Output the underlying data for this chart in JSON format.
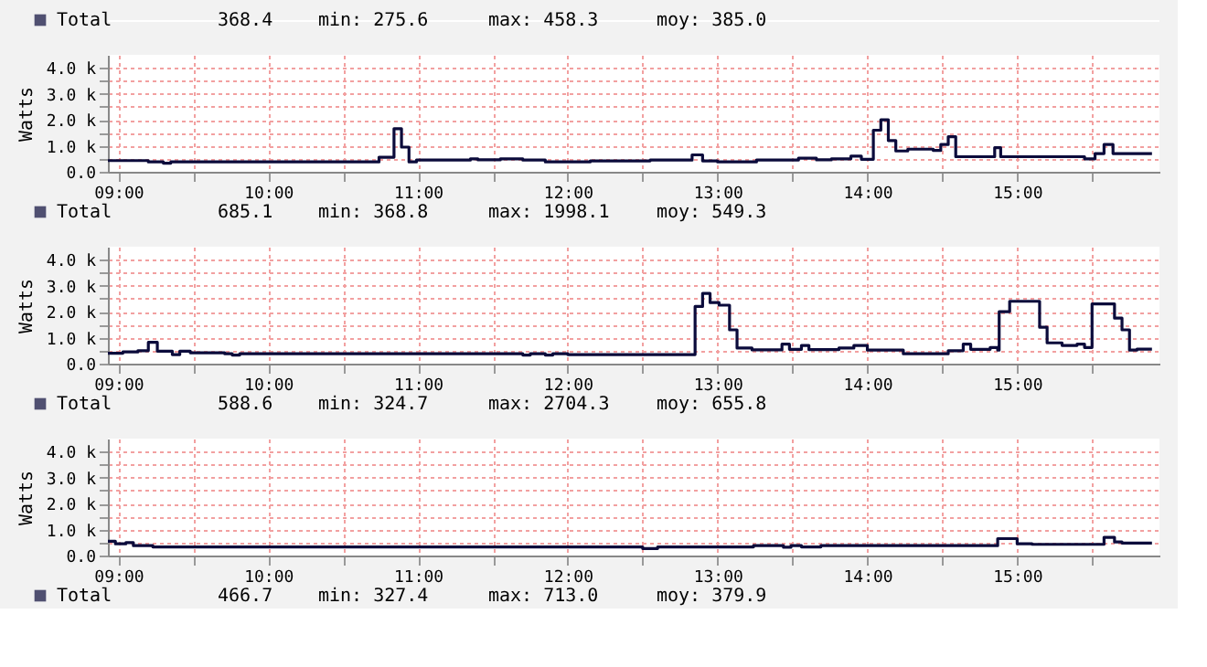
{
  "chart_data": [
    {
      "type": "other",
      "annotations": [
        "Total",
        "368.4",
        "min: 275.6",
        "max: 458.3",
        "moy: 385.0"
      ]
    },
    {
      "type": "step",
      "ylabel": "Watts",
      "legend": "bottom left",
      "grid": true,
      "xlim": [
        8.93,
        15.95
      ],
      "ylim": [
        0,
        4500
      ],
      "xticks": [
        {
          "value": 9,
          "label": "09:00"
        },
        {
          "value": 9.5,
          "label": null
        },
        {
          "value": 10,
          "label": "10:00"
        },
        {
          "value": 10.5,
          "label": null
        },
        {
          "value": 11,
          "label": "11:00"
        },
        {
          "value": 11.5,
          "label": null
        },
        {
          "value": 12,
          "label": "12:00"
        },
        {
          "value": 12.5,
          "label": null
        },
        {
          "value": 13,
          "label": "13:00"
        },
        {
          "value": 13.5,
          "label": null
        },
        {
          "value": 14,
          "label": "14:00"
        },
        {
          "value": 14.5,
          "label": null
        },
        {
          "value": 15,
          "label": "15:00"
        },
        {
          "value": 15.5,
          "label": null
        }
      ],
      "yticks": [
        {
          "value": 0,
          "label": "0.0"
        },
        {
          "value": 500,
          "label": null
        },
        {
          "value": 1000,
          "label": "1.0 k"
        },
        {
          "value": 1500,
          "label": null
        },
        {
          "value": 2000,
          "label": "2.0 k"
        },
        {
          "value": 2500,
          "label": null
        },
        {
          "value": 3000,
          "label": "3.0 k"
        },
        {
          "value": 3500,
          "label": null
        },
        {
          "value": 4000,
          "label": "4.0 k"
        }
      ],
      "annotations": [
        "685.1",
        "min: 368.8",
        "max: 1998.1",
        "moy: 549.3"
      ],
      "series": [
        {
          "name": "Total",
          "color": "#0b0b3b",
          "x": [
            8.93,
            9.2,
            9.3,
            9.35,
            10.74,
            10.84,
            10.89,
            10.94,
            10.99,
            11.35,
            11.4,
            11.55,
            11.7,
            11.85,
            12.15,
            12.55,
            12.83,
            12.9,
            13.0,
            13.26,
            13.54,
            13.66,
            13.76,
            13.89,
            13.96,
            14.04,
            14.09,
            14.14,
            14.19,
            14.27,
            14.39,
            14.44,
            14.49,
            14.54,
            14.59,
            14.85,
            14.89,
            15.45,
            15.52,
            15.58,
            15.64,
            15.9
          ],
          "values": [
            430,
            380,
            330,
            380,
            560,
            1660,
            950,
            380,
            450,
            500,
            460,
            500,
            450,
            380,
            420,
            450,
            650,
            420,
            380,
            450,
            520,
            460,
            500,
            600,
            480,
            1600,
            2000,
            1200,
            800,
            870,
            870,
            820,
            1050,
            1350,
            580,
            930,
            580,
            500,
            700,
            1050,
            700,
            700
          ]
        }
      ]
    },
    {
      "type": "step",
      "ylabel": "Watts",
      "legend": "bottom left",
      "grid": true,
      "xlim": [
        8.93,
        15.95
      ],
      "ylim": [
        0,
        4500
      ],
      "xticks": [
        {
          "value": 9,
          "label": "09:00"
        },
        {
          "value": 9.5,
          "label": null
        },
        {
          "value": 10,
          "label": "10:00"
        },
        {
          "value": 10.5,
          "label": null
        },
        {
          "value": 11,
          "label": "11:00"
        },
        {
          "value": 11.5,
          "label": null
        },
        {
          "value": 12,
          "label": "12:00"
        },
        {
          "value": 12.5,
          "label": null
        },
        {
          "value": 13,
          "label": "13:00"
        },
        {
          "value": 13.5,
          "label": null
        },
        {
          "value": 14,
          "label": "14:00"
        },
        {
          "value": 14.5,
          "label": null
        },
        {
          "value": 15,
          "label": "15:00"
        },
        {
          "value": 15.5,
          "label": null
        }
      ],
      "yticks": [
        {
          "value": 0,
          "label": "0.0"
        },
        {
          "value": 500,
          "label": null
        },
        {
          "value": 1000,
          "label": "1.0 k"
        },
        {
          "value": 1500,
          "label": null
        },
        {
          "value": 2000,
          "label": "2.0 k"
        },
        {
          "value": 2500,
          "label": null
        },
        {
          "value": 3000,
          "label": "3.0 k"
        },
        {
          "value": 3500,
          "label": null
        },
        {
          "value": 4000,
          "label": "4.0 k"
        }
      ],
      "annotations": [
        "588.6",
        "min: 324.7",
        "max: 2704.3",
        "moy: 655.8"
      ],
      "series": [
        {
          "name": "Total",
          "color": "#0b0b3b",
          "x": [
            8.93,
            9.03,
            9.13,
            9.2,
            9.26,
            9.36,
            9.41,
            9.48,
            9.71,
            9.76,
            9.81,
            11.7,
            11.75,
            11.85,
            11.9,
            12.0,
            12.85,
            12.9,
            12.95,
            13.01,
            13.08,
            13.13,
            13.23,
            13.43,
            13.48,
            13.56,
            13.61,
            13.81,
            13.91,
            14.0,
            14.24,
            14.54,
            14.64,
            14.69,
            14.82,
            14.87,
            14.88,
            14.95,
            15.15,
            15.2,
            15.3,
            15.4,
            15.45,
            15.5,
            15.65,
            15.7,
            15.75,
            15.8,
            15.9
          ],
          "values": [
            400,
            450,
            500,
            820,
            480,
            350,
            480,
            420,
            380,
            330,
            380,
            330,
            380,
            330,
            380,
            350,
            2200,
            2700,
            2350,
            2250,
            1300,
            600,
            530,
            750,
            550,
            700,
            540,
            600,
            700,
            520,
            380,
            500,
            750,
            550,
            620,
            520,
            2000,
            2400,
            1400,
            800,
            700,
            750,
            620,
            2300,
            1750,
            1300,
            520,
            560,
            560
          ]
        }
      ]
    },
    {
      "type": "step",
      "ylabel": "Watts",
      "legend": "bottom left",
      "grid": true,
      "xlim": [
        8.93,
        15.95
      ],
      "ylim": [
        0,
        4500
      ],
      "xticks": [
        {
          "value": 9,
          "label": "09:00"
        },
        {
          "value": 9.5,
          "label": null
        },
        {
          "value": 10,
          "label": "10:00"
        },
        {
          "value": 10.5,
          "label": null
        },
        {
          "value": 11,
          "label": "11:00"
        },
        {
          "value": 11.5,
          "label": null
        },
        {
          "value": 12,
          "label": "12:00"
        },
        {
          "value": 12.5,
          "label": null
        },
        {
          "value": 13,
          "label": "13:00"
        },
        {
          "value": 13.5,
          "label": null
        },
        {
          "value": 14,
          "label": "14:00"
        },
        {
          "value": 14.5,
          "label": null
        },
        {
          "value": 15,
          "label": "15:00"
        },
        {
          "value": 15.5,
          "label": null
        }
      ],
      "yticks": [
        {
          "value": 0,
          "label": "0.0"
        },
        {
          "value": 500,
          "label": null
        },
        {
          "value": 1000,
          "label": "1.0 k"
        },
        {
          "value": 1500,
          "label": null
        },
        {
          "value": 2000,
          "label": "2.0 k"
        },
        {
          "value": 2500,
          "label": null
        },
        {
          "value": 3000,
          "label": "3.0 k"
        },
        {
          "value": 3500,
          "label": null
        },
        {
          "value": 4000,
          "label": "4.0 k"
        }
      ],
      "annotations": [
        "466.7",
        "min: 327.4",
        "max: 713.0",
        "moy: 379.9"
      ],
      "series": [
        {
          "name": "Total",
          "color": "#0b0b3b",
          "x": [
            8.93,
            8.98,
            9.05,
            9.1,
            9.23,
            12.5,
            12.6,
            13.24,
            13.44,
            13.49,
            13.56,
            13.69,
            14.87,
            15.0,
            15.1,
            15.58,
            15.65,
            15.7,
            15.9
          ],
          "values": [
            550,
            450,
            500,
            380,
            330,
            270,
            330,
            380,
            320,
            380,
            330,
            380,
            650,
            450,
            430,
            700,
            520,
            480,
            480
          ]
        }
      ]
    }
  ]
}
